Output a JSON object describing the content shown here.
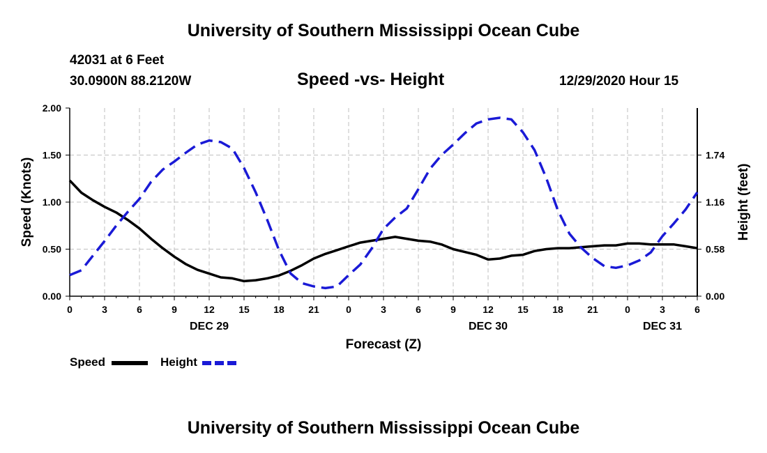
{
  "header": {
    "title": "University of Southern Mississippi Ocean Cube",
    "station": "42031 at 6 Feet",
    "location": "30.0900N 88.2120W",
    "date": "12/29/2020 Hour 15"
  },
  "footer": {
    "title": "University of Southern Mississippi Ocean Cube"
  },
  "legend": {
    "speed_label": "Speed",
    "height_label": "Height"
  },
  "colors": {
    "speed": "#000000",
    "height": "#1a1ad6",
    "grid": "#bfbfbf"
  },
  "chart_data": {
    "type": "line",
    "title": "Speed -vs- Height",
    "xlabel": "Forecast (Z)",
    "ylabel": "Speed (Knots)",
    "y2label": "Height (feet)",
    "xlim": [
      0,
      54
    ],
    "ylim": [
      0,
      2
    ],
    "y2lim": [
      0,
      2.32
    ],
    "x_ticks": [
      {
        "x": 0,
        "label": "0"
      },
      {
        "x": 3,
        "label": "3"
      },
      {
        "x": 6,
        "label": "6"
      },
      {
        "x": 9,
        "label": "9"
      },
      {
        "x": 12,
        "label": "12"
      },
      {
        "x": 15,
        "label": "15"
      },
      {
        "x": 18,
        "label": "18"
      },
      {
        "x": 21,
        "label": "21"
      },
      {
        "x": 24,
        "label": "0"
      },
      {
        "x": 27,
        "label": "3"
      },
      {
        "x": 30,
        "label": "6"
      },
      {
        "x": 33,
        "label": "9"
      },
      {
        "x": 36,
        "label": "12"
      },
      {
        "x": 39,
        "label": "15"
      },
      {
        "x": 42,
        "label": "18"
      },
      {
        "x": 45,
        "label": "21"
      },
      {
        "x": 48,
        "label": "0"
      },
      {
        "x": 51,
        "label": "3"
      },
      {
        "x": 54,
        "label": "6"
      }
    ],
    "date_labels": [
      {
        "x": 12,
        "label": "DEC 29"
      },
      {
        "x": 36,
        "label": "DEC 30"
      },
      {
        "x": 51,
        "label": "DEC 31"
      }
    ],
    "y_ticks": [
      {
        "v": 0,
        "label": "0.00"
      },
      {
        "v": 0.5,
        "label": "0.50"
      },
      {
        "v": 1.0,
        "label": "1.00"
      },
      {
        "v": 1.5,
        "label": "1.50"
      },
      {
        "v": 2.0,
        "label": "2.00"
      }
    ],
    "y2_ticks": [
      {
        "v": 0,
        "label": "0.00"
      },
      {
        "v": 0.58,
        "label": "0.58"
      },
      {
        "v": 1.16,
        "label": "1.16"
      },
      {
        "v": 1.74,
        "label": "1.74"
      }
    ],
    "series": [
      {
        "name": "Speed",
        "axis": "left",
        "style": "solid",
        "x": [
          0,
          1,
          2,
          3,
          4,
          5,
          6,
          7,
          8,
          9,
          10,
          11,
          12,
          13,
          14,
          15,
          16,
          17,
          18,
          19,
          20,
          21,
          22,
          23,
          24,
          25,
          26,
          27,
          28,
          29,
          30,
          31,
          32,
          33,
          34,
          35,
          36,
          37,
          38,
          39,
          40,
          41,
          42,
          43,
          44,
          45,
          46,
          47,
          48,
          49,
          50,
          51,
          52,
          53,
          54
        ],
        "values": [
          1.23,
          1.1,
          1.02,
          0.95,
          0.89,
          0.81,
          0.72,
          0.61,
          0.51,
          0.42,
          0.34,
          0.28,
          0.24,
          0.2,
          0.19,
          0.16,
          0.17,
          0.19,
          0.22,
          0.27,
          0.33,
          0.4,
          0.45,
          0.49,
          0.53,
          0.57,
          0.59,
          0.61,
          0.63,
          0.61,
          0.59,
          0.58,
          0.55,
          0.5,
          0.47,
          0.44,
          0.39,
          0.4,
          0.43,
          0.44,
          0.48,
          0.5,
          0.51,
          0.51,
          0.52,
          0.53,
          0.54,
          0.54,
          0.56,
          0.56,
          0.55,
          0.55,
          0.55,
          0.53,
          0.51
        ]
      },
      {
        "name": "Height",
        "axis": "right",
        "style": "dashed",
        "x": [
          0,
          1,
          2,
          3,
          4,
          5,
          6,
          7,
          8,
          9,
          10,
          11,
          12,
          13,
          14,
          15,
          16,
          17,
          18,
          19,
          20,
          21,
          22,
          23,
          24,
          25,
          26,
          27,
          28,
          29,
          30,
          31,
          32,
          33,
          34,
          35,
          36,
          37,
          38,
          39,
          40,
          41,
          42,
          43,
          44,
          45,
          46,
          47,
          48,
          49,
          50,
          51,
          52,
          53,
          54
        ],
        "values": [
          0.26,
          0.32,
          0.5,
          0.68,
          0.87,
          1.04,
          1.2,
          1.41,
          1.56,
          1.66,
          1.77,
          1.87,
          1.92,
          1.9,
          1.82,
          1.58,
          1.28,
          0.94,
          0.57,
          0.28,
          0.16,
          0.12,
          0.1,
          0.12,
          0.26,
          0.39,
          0.59,
          0.83,
          0.97,
          1.08,
          1.32,
          1.57,
          1.74,
          1.87,
          2.01,
          2.13,
          2.18,
          2.2,
          2.18,
          2.02,
          1.8,
          1.46,
          1.06,
          0.77,
          0.6,
          0.47,
          0.37,
          0.35,
          0.38,
          0.44,
          0.54,
          0.74,
          0.9,
          1.07,
          1.28
        ]
      }
    ]
  }
}
